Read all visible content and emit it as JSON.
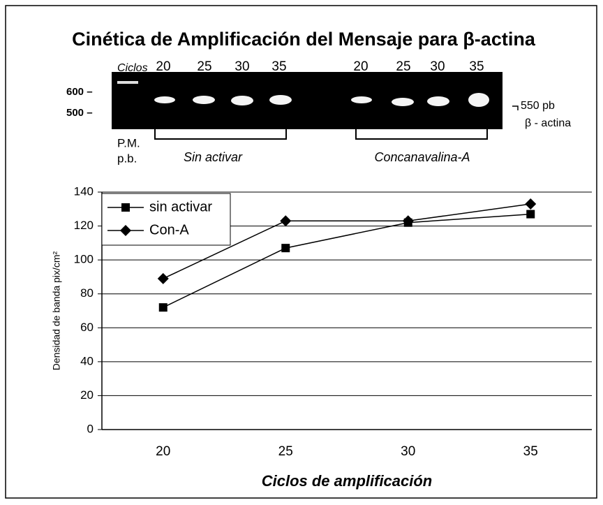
{
  "chart_data": {
    "type": "line",
    "title": "Cinética de Amplificación del Mensaje para β-actina",
    "categories": [
      "20",
      "25",
      "30",
      "35"
    ],
    "series": [
      {
        "name": "sin activar",
        "color": "#000000",
        "marker": "square",
        "values": [
          72,
          107,
          122,
          127
        ]
      },
      {
        "name": "Con-A",
        "color": "#000000",
        "marker": "diamond",
        "values": [
          89,
          123,
          123,
          133
        ]
      }
    ],
    "ylim": [
      0,
      140
    ],
    "yticks": [
      0,
      20,
      40,
      60,
      80,
      100,
      120,
      140
    ],
    "grid": true,
    "ylabel": "Densidad de banda pix/cm²",
    "xlabel": "Ciclos de amplificación",
    "legend": "upper left"
  },
  "gel": {
    "cycles_label": "Ciclos",
    "lanes_left": [
      "20",
      "25",
      "30",
      "35"
    ],
    "lanes_right": [
      "20",
      "25",
      "30",
      "35"
    ],
    "marker_600": "600 –",
    "marker_500": "500 –",
    "band_size": "550 pb",
    "band_name": "β - actina",
    "pm": "P.M.",
    "pb": "p.b.",
    "group_left": "Sin activar",
    "group_right": "Concanavalina-A"
  }
}
